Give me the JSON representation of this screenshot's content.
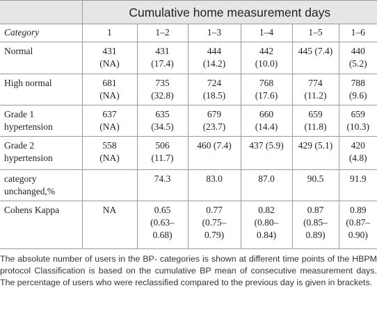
{
  "header": {
    "title": "Cumulative home measurement days"
  },
  "columns": [
    "Category",
    "1",
    "1–2",
    "1–3",
    "1–4",
    "1–5",
    "1–6"
  ],
  "rows": [
    [
      [
        "Normal"
      ],
      [
        "431",
        "(NA)"
      ],
      [
        "431",
        "(17.4)"
      ],
      [
        "444",
        "(14.2)"
      ],
      [
        "442",
        "(10.0)"
      ],
      [
        "445 (7.4)"
      ],
      [
        "440 (5.2)"
      ]
    ],
    [
      [
        "High normal"
      ],
      [
        "681",
        "(NA)"
      ],
      [
        "735",
        "(32.8)"
      ],
      [
        "724",
        "(18.5)"
      ],
      [
        "768",
        "(17.6)"
      ],
      [
        "774",
        "(11.2)"
      ],
      [
        "788 (9.6)"
      ]
    ],
    [
      [
        "Grade 1",
        "hypertension"
      ],
      [
        "637",
        "(NA)"
      ],
      [
        "635",
        "(34.5)"
      ],
      [
        "679",
        "(23.7)"
      ],
      [
        "660",
        "(14.4)"
      ],
      [
        "659",
        "(11.8)"
      ],
      [
        "659",
        "(10.3)"
      ]
    ],
    [
      [
        "Grade 2",
        "hypertension"
      ],
      [
        "558",
        "(NA)"
      ],
      [
        "506",
        "(11.7)"
      ],
      [
        "460 (7.4)"
      ],
      [
        "437 (5.9)"
      ],
      [
        "429 (5.1)"
      ],
      [
        "420 (4.8)"
      ]
    ],
    [
      [
        "category",
        "unchanged,%"
      ],
      [],
      [
        "74.3"
      ],
      [
        "83.0"
      ],
      [
        "87.0"
      ],
      [
        "90.5"
      ],
      [
        "91.9"
      ]
    ],
    [
      [
        "Cohens Kappa"
      ],
      [
        "NA"
      ],
      [
        "0.65",
        "(0.63–",
        "0.68)"
      ],
      [
        "0.77",
        "(0.75–",
        "0.79)"
      ],
      [
        "0.82",
        "(0.80–",
        "0.84)"
      ],
      [
        "0.87",
        "(0.85–",
        "0.89)"
      ],
      [
        "0.89",
        "(0.87–",
        "0.90)"
      ]
    ]
  ],
  "caption": "The absolute number of users in the BP- categories is shown at different time points of the HBPM protocol Classification is based on the cumulative BP mean of consecutive measurement days. The percentage of users who were reclassified compared to the previous day is given in brackets."
}
